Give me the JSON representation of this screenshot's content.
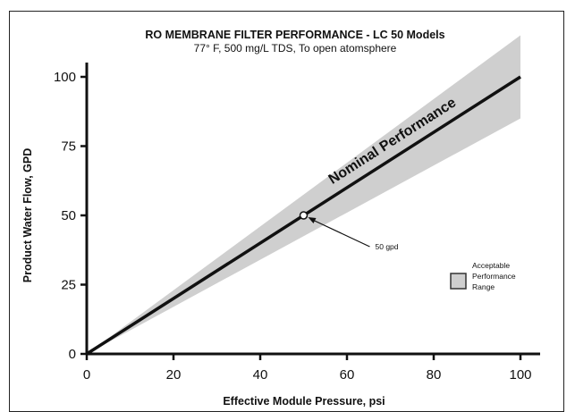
{
  "chart_data": {
    "type": "line",
    "title": "RO MEMBRANE FILTER PERFORMANCE - LC 50 Models",
    "subtitle": "77° F, 500 mg/L TDS, To open atomsphere",
    "xlabel": "Effective Module Pressure, psi",
    "ylabel": "Product Water Flow, GPD",
    "xlim": [
      0,
      100
    ],
    "ylim": [
      0,
      100
    ],
    "x_ticks": [
      "0",
      "20",
      "40",
      "60",
      "80",
      "100"
    ],
    "y_ticks": [
      "0",
      "25",
      "50",
      "75",
      "100"
    ],
    "grid": false,
    "series": [
      {
        "name": "Nominal Performance",
        "x": [
          0,
          100
        ],
        "y": [
          0,
          100
        ]
      }
    ],
    "range": {
      "legend": "Acceptable Performance Range",
      "x": [
        0,
        100
      ],
      "upper": [
        0,
        115
      ],
      "lower": [
        0,
        85
      ]
    },
    "annotation": {
      "text": "50 gpd",
      "x": 50,
      "y": 50
    },
    "colors": {
      "line": "#111111",
      "range_fill": "#cfcfcf"
    }
  }
}
